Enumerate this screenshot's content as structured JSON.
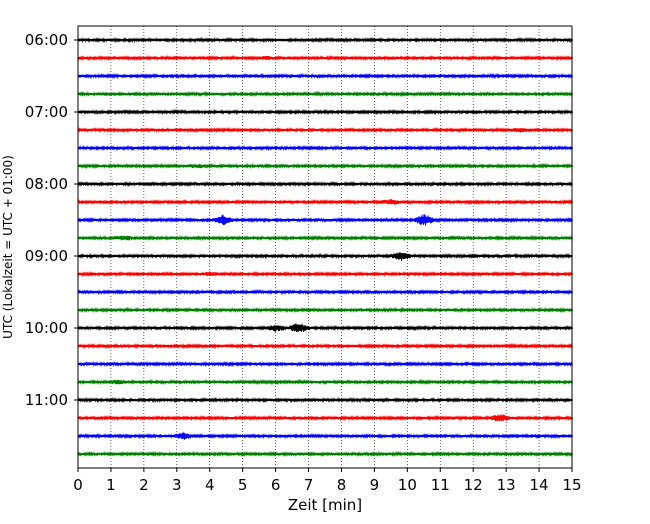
{
  "chart_data": {
    "type": "line",
    "xlabel": "Zeit  [min]",
    "ylabel": "UTC (Lokalzeit = UTC + 01:00)",
    "xlim": [
      0,
      15
    ],
    "x_ticks": [
      0,
      1,
      2,
      3,
      4,
      5,
      6,
      7,
      8,
      9,
      10,
      11,
      12,
      13,
      14,
      15
    ],
    "y_tick_labels": [
      "06:00",
      "07:00",
      "08:00",
      "09:00",
      "10:00",
      "11:00"
    ],
    "grid": "vertical dotted",
    "trace_colors": [
      "#000000",
      "#ff0000",
      "#0000ff",
      "#008000"
    ],
    "trace_start_times": [
      "06:00",
      "06:15",
      "06:30",
      "06:45",
      "07:00",
      "07:15",
      "07:30",
      "07:45",
      "08:00",
      "08:15",
      "08:30",
      "08:45",
      "09:00",
      "09:15",
      "09:30",
      "09:45",
      "10:00",
      "10:15",
      "10:30",
      "10:45",
      "11:00",
      "11:15",
      "11:30",
      "11:45"
    ],
    "events": [
      {
        "trace": "06:15",
        "x": 5.7,
        "amplitude": 0.8
      },
      {
        "trace": "06:45",
        "x": 0.9,
        "amplitude": 0.6
      },
      {
        "trace": "07:15",
        "x": 13.4,
        "amplitude": 1.2
      },
      {
        "trace": "07:45",
        "x": 3.6,
        "amplitude": 1.1
      },
      {
        "trace": "08:15",
        "x": 9.5,
        "amplitude": 2.2
      },
      {
        "trace": "08:30",
        "x": 4.4,
        "amplitude": 4.0
      },
      {
        "trace": "08:30",
        "x": 10.5,
        "amplitude": 5.0
      },
      {
        "trace": "08:45",
        "x": 1.4,
        "amplitude": 1.5
      },
      {
        "trace": "09:00",
        "x": 9.8,
        "amplitude": 4.0
      },
      {
        "trace": "09:15",
        "x": 4.0,
        "amplitude": 1.0
      },
      {
        "trace": "10:00",
        "x": 6.0,
        "amplitude": 2.5
      },
      {
        "trace": "10:00",
        "x": 6.7,
        "amplitude": 4.0
      },
      {
        "trace": "10:45",
        "x": 1.2,
        "amplitude": 1.4
      },
      {
        "trace": "11:15",
        "x": 12.8,
        "amplitude": 3.5
      },
      {
        "trace": "11:30",
        "x": 3.2,
        "amplitude": 2.5
      }
    ]
  }
}
